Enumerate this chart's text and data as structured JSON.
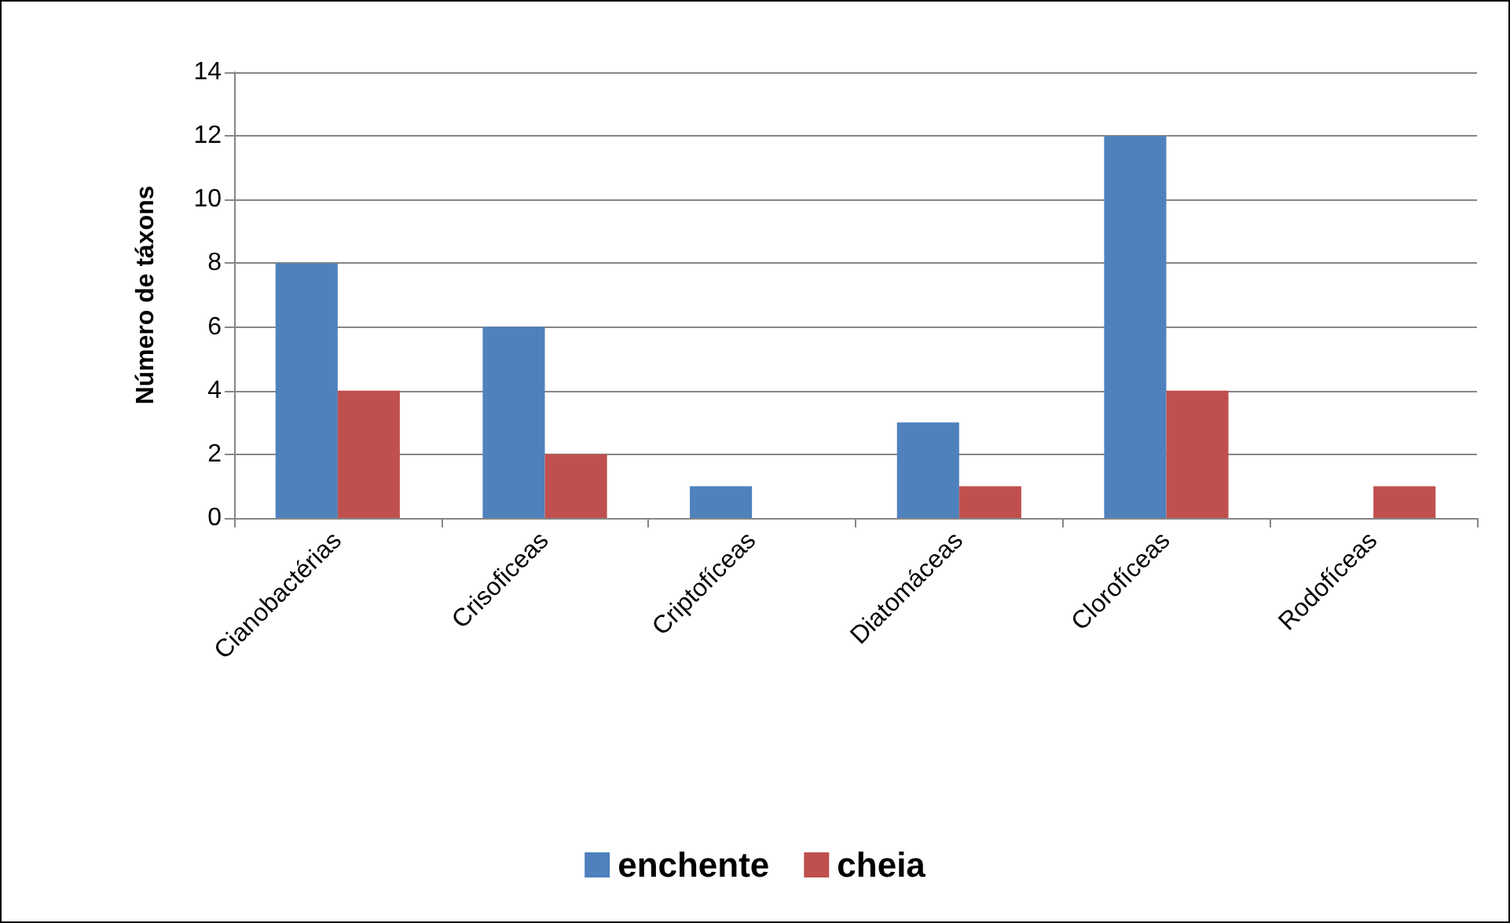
{
  "chart_data": {
    "type": "bar",
    "ylabel": "Número de táxons",
    "categories": [
      "Cianobactérias",
      "Crisoficeas",
      "Criptofíceas",
      "Diatomáceas",
      "Clorofíceas",
      "Rodofíceas"
    ],
    "series": [
      {
        "name": "enchente",
        "color": "#4f81bd",
        "values": [
          8,
          6,
          1,
          3,
          12,
          0
        ]
      },
      {
        "name": "cheia",
        "color": "#c0504d",
        "values": [
          4,
          2,
          0,
          1,
          4,
          1
        ]
      }
    ],
    "ylim": [
      0,
      14
    ],
    "yticks": [
      0,
      2,
      4,
      6,
      8,
      10,
      12,
      14
    ],
    "grid": "y",
    "legend": "bottom"
  }
}
